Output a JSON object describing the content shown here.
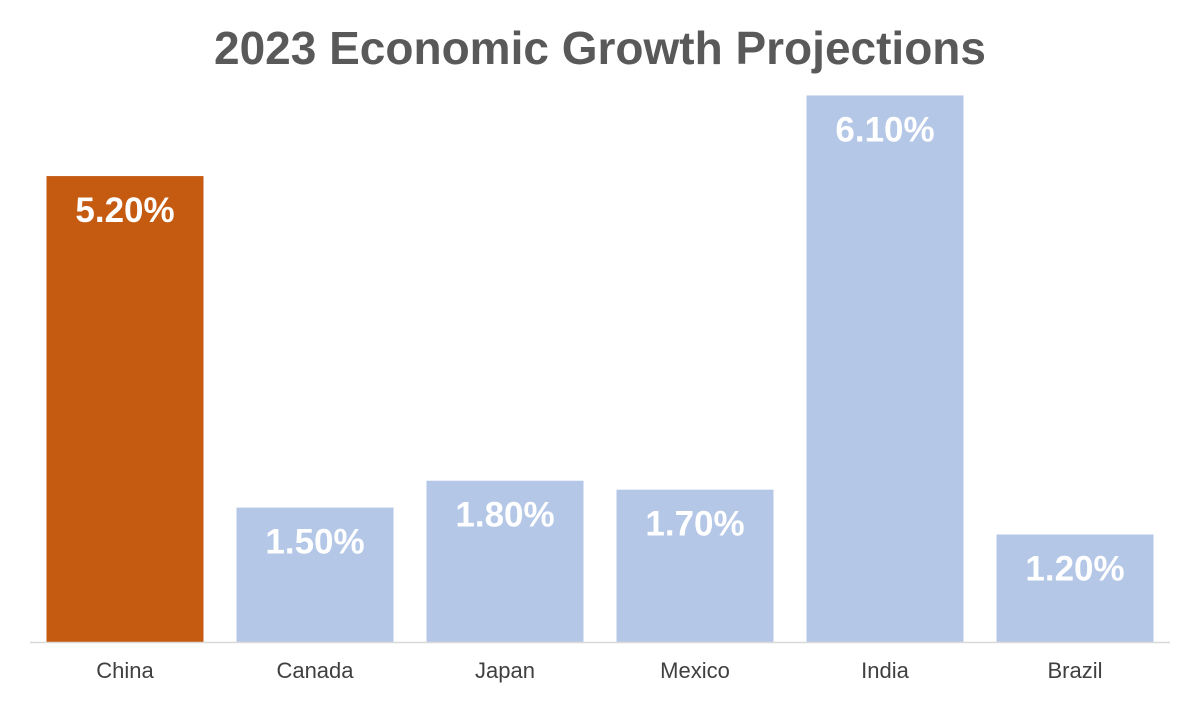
{
  "chart_data": {
    "type": "bar",
    "title": "2023 Economic Growth Projections",
    "categories": [
      "China",
      "Canada",
      "Japan",
      "Mexico",
      "India",
      "Brazil"
    ],
    "values": [
      5.2,
      1.5,
      1.8,
      1.7,
      6.1,
      1.2
    ],
    "data_labels": [
      "5.20%",
      "1.50%",
      "1.80%",
      "1.70%",
      "6.10%",
      "1.20%"
    ],
    "ylim": [
      0,
      7
    ],
    "grid": false,
    "legend": "none",
    "colors": {
      "highlight": "#C55A11",
      "default": "#B4C7E7",
      "baseline": "#D9D9D9",
      "title": "#595959",
      "tick_text": "#404040",
      "label_text": "#FFFFFF"
    },
    "highlight_categories": [
      "China"
    ]
  }
}
